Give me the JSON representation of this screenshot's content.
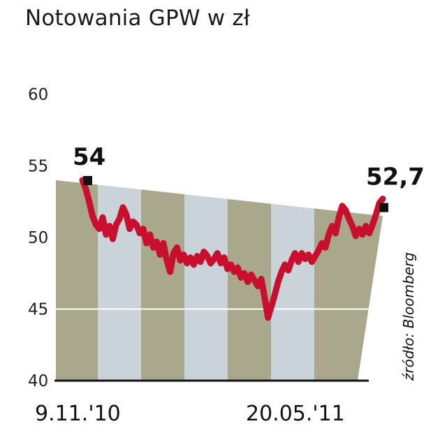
{
  "title": "Notowania GPW w zł",
  "source": "źródło: Bloomberg",
  "colors": {
    "line": "#c8102e",
    "band_dark": "#a9a88c",
    "band_light": "#c9d3d9",
    "axis": "#111111"
  },
  "chart_data": {
    "type": "line",
    "title": "Notowania GPW w zł",
    "ylim": [
      40,
      60
    ],
    "yticks": [
      40,
      45,
      50,
      55,
      60
    ],
    "x_tick_labels": [
      "9.11.'10",
      "20.05.'11"
    ],
    "start_label": "54",
    "end_label": "52,7",
    "series": [
      {
        "values": [
          54.0,
          53.4,
          52.5,
          51.5,
          50.9,
          50.6,
          51.4,
          50.2,
          50.8,
          49.9,
          50.9,
          51.3,
          52.1,
          51.6,
          50.6,
          51.1,
          50.9,
          50.3,
          50.6,
          49.6,
          50.2,
          49.3,
          49.7,
          48.8,
          49.6,
          48.4,
          47.6,
          48.9,
          49.3,
          48.4,
          48.8,
          48.2,
          48.6,
          48.1,
          48.7,
          48.3,
          49.0,
          48.7,
          48.2,
          48.5,
          48.9,
          48.2,
          48.6,
          47.8,
          48.1,
          47.6,
          47.9,
          47.2,
          47.5,
          46.9,
          47.4,
          47.0,
          46.6,
          47.1,
          45.8,
          44.4,
          45.2,
          46.0,
          46.9,
          47.6,
          48.1,
          47.7,
          48.4,
          48.9,
          48.3,
          48.9,
          48.5,
          48.8,
          48.3,
          48.7,
          49.1,
          49.6,
          49.3,
          50.2,
          50.8,
          50.3,
          51.4,
          52.2,
          51.9,
          51.3,
          50.8,
          50.1,
          50.6,
          50.2,
          50.8,
          50.3,
          50.9,
          51.6,
          52.4,
          52.7
        ]
      }
    ]
  }
}
